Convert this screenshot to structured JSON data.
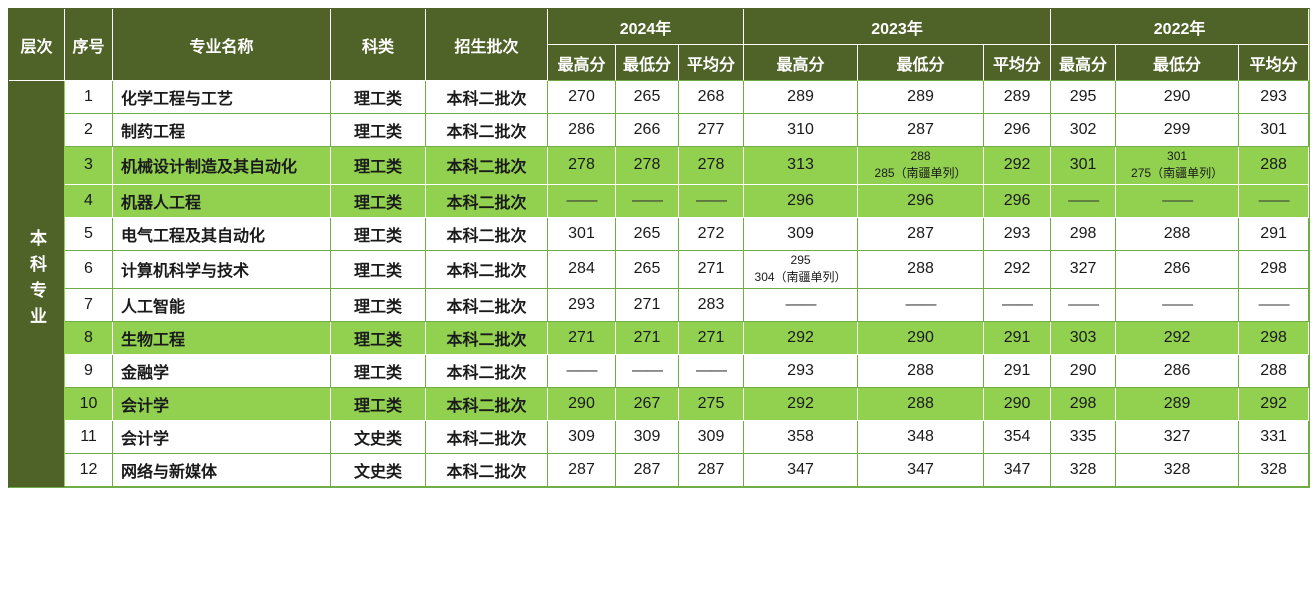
{
  "colors": {
    "header_bg": "#4F6228",
    "highlight_bg": "#92D050",
    "grid_border": "#70AD47",
    "header_text": "#FFFFFF",
    "body_text": "#1A1A1A"
  },
  "table": {
    "header": {
      "level": "层次",
      "no": "序号",
      "major": "专业名称",
      "category": "科类",
      "batch": "招生批次",
      "years": [
        "2024年",
        "2023年",
        "2022年"
      ],
      "score_cols": [
        "最高分",
        "最低分",
        "平均分"
      ]
    },
    "level_label": "本科专业",
    "empty_value": "——",
    "rows": [
      {
        "no": "1",
        "major": "化学工程与工艺",
        "category": "理工类",
        "batch": "本科二批次",
        "highlight": false,
        "scores": [
          "270",
          "265",
          "268",
          "289",
          "289",
          "289",
          "295",
          "290",
          "293"
        ]
      },
      {
        "no": "2",
        "major": "制药工程",
        "category": "理工类",
        "batch": "本科二批次",
        "highlight": false,
        "scores": [
          "286",
          "266",
          "277",
          "310",
          "287",
          "296",
          "302",
          "299",
          "301"
        ]
      },
      {
        "no": "3",
        "major": "机械设计制造及其自动化",
        "category": "理工类",
        "batch": "本科二批次",
        "highlight": true,
        "scores": [
          "278",
          "278",
          "278",
          "313",
          "288\n285（南疆单列）",
          "292",
          "301",
          "301\n275（南疆单列）",
          "288"
        ]
      },
      {
        "no": "4",
        "major": "机器人工程",
        "category": "理工类",
        "batch": "本科二批次",
        "highlight": true,
        "scores": [
          "——",
          "——",
          "——",
          "296",
          "296",
          "296",
          "——",
          "——",
          "——"
        ]
      },
      {
        "no": "5",
        "major": "电气工程及其自动化",
        "category": "理工类",
        "batch": "本科二批次",
        "highlight": false,
        "scores": [
          "301",
          "265",
          "272",
          "309",
          "287",
          "293",
          "298",
          "288",
          "291"
        ]
      },
      {
        "no": "6",
        "major": "计算机科学与技术",
        "category": "理工类",
        "batch": "本科二批次",
        "highlight": false,
        "scores": [
          "284",
          "265",
          "271",
          "295\n304（南疆单列）",
          "288",
          "292",
          "327",
          "286",
          "298"
        ]
      },
      {
        "no": "7",
        "major": "人工智能",
        "category": "理工类",
        "batch": "本科二批次",
        "highlight": false,
        "scores": [
          "293",
          "271",
          "283",
          "——",
          "——",
          "——",
          "——",
          "——",
          "——"
        ]
      },
      {
        "no": "8",
        "major": "生物工程",
        "category": "理工类",
        "batch": "本科二批次",
        "highlight": true,
        "scores": [
          "271",
          "271",
          "271",
          "292",
          "290",
          "291",
          "303",
          "292",
          "298"
        ]
      },
      {
        "no": "9",
        "major": "金融学",
        "category": "理工类",
        "batch": "本科二批次",
        "highlight": false,
        "scores": [
          "——",
          "——",
          "——",
          "293",
          "288",
          "291",
          "290",
          "286",
          "288"
        ]
      },
      {
        "no": "10",
        "major": "会计学",
        "category": "理工类",
        "batch": "本科二批次",
        "highlight": true,
        "scores": [
          "290",
          "267",
          "275",
          "292",
          "288",
          "290",
          "298",
          "289",
          "292"
        ]
      },
      {
        "no": "11",
        "major": "会计学",
        "category": "文史类",
        "batch": "本科二批次",
        "highlight": false,
        "scores": [
          "309",
          "309",
          "309",
          "358",
          "348",
          "354",
          "335",
          "327",
          "331"
        ]
      },
      {
        "no": "12",
        "major": "网络与新媒体",
        "category": "文史类",
        "batch": "本科二批次",
        "highlight": false,
        "scores": [
          "287",
          "287",
          "287",
          "347",
          "347",
          "347",
          "328",
          "328",
          "328"
        ]
      }
    ]
  }
}
